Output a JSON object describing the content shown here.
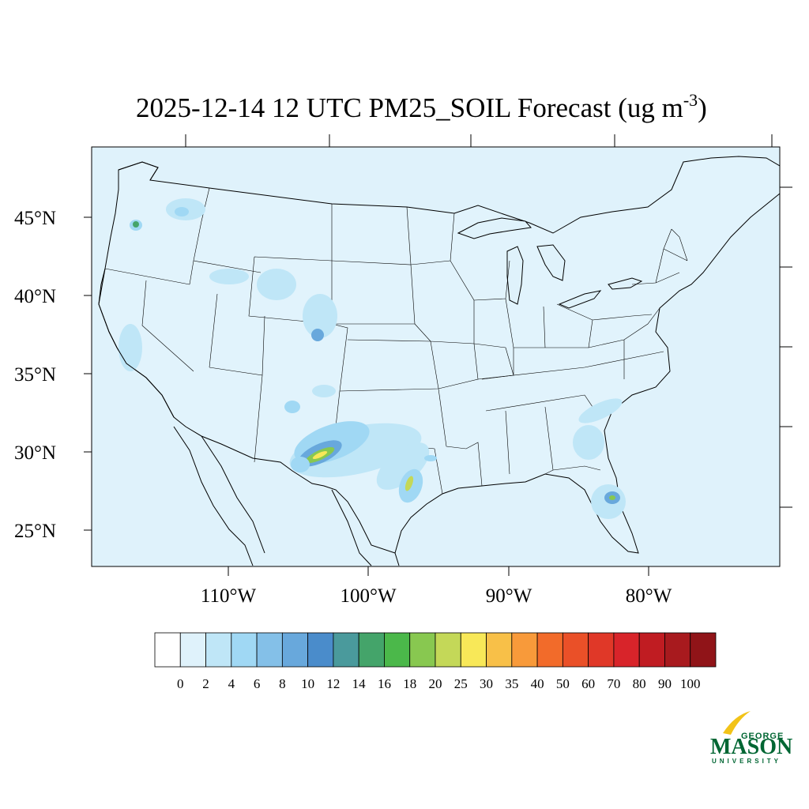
{
  "title": {
    "main": "2025-12-14 12 UTC PM25_SOIL Forecast (ug m",
    "superscript": "-3",
    "closing": ")"
  },
  "map": {
    "ocean_color": "#dff2fb",
    "land_color": "#e1f3fc",
    "lat_labels": [
      "45°N",
      "40°N",
      "35°N",
      "30°N",
      "25°N"
    ],
    "lon_labels": [
      "110°W",
      "100°W",
      "90°W",
      "80°W"
    ]
  },
  "colorbar": {
    "labels": [
      "0",
      "2",
      "4",
      "6",
      "8",
      "10",
      "12",
      "14",
      "16",
      "18",
      "20",
      "25",
      "30",
      "35",
      "40",
      "50",
      "60",
      "70",
      "80",
      "90",
      "100"
    ],
    "colors": [
      "#ffffff",
      "#dff2fb",
      "#bfe6f7",
      "#a0d8f4",
      "#84c0e8",
      "#68a8dc",
      "#4a8ccb",
      "#4a9a9c",
      "#44a46a",
      "#4bb84a",
      "#88c850",
      "#c4d858",
      "#f8e858",
      "#f8c048",
      "#f89a3a",
      "#f26b2a",
      "#ea5028",
      "#e03828",
      "#d8242a",
      "#c01c22",
      "#a81a1e",
      "#901418"
    ]
  },
  "logo": {
    "top": "GEORGE",
    "main": "MASON",
    "bottom": "UNIVERSITY"
  }
}
